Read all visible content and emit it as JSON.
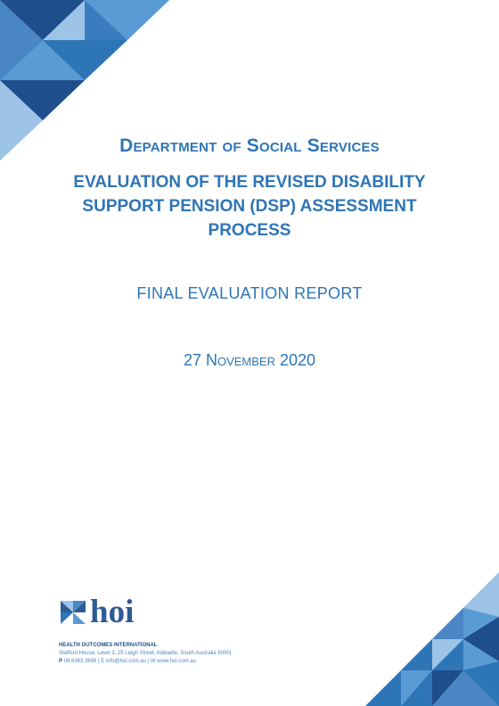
{
  "cover": {
    "department": "Department of Social Services",
    "title": "EVALUATION OF THE REVISED DISABILITY SUPPORT PENSION (DSP) ASSESSMENT PROCESS",
    "report_type": "FINAL EVALUATION REPORT",
    "date": "27 November 2020"
  },
  "logo": {
    "text": "hoi",
    "icon": "pinwheel-logo-icon"
  },
  "footer": {
    "org": "HEALTH OUTCOMES INTERNATIONAL",
    "address": "Stafford House, Level 3, 25 Leigh Street, Adelaide, South Australia 5000|",
    "phone_label": "P",
    "phone": "08 8363 3699",
    "email": "| E info@hoi.com.au",
    "web": "| W www.hoi.com.au"
  },
  "colors": {
    "primary": "#2E75B6",
    "dark": "#1F4E8C",
    "mid": "#5B9BD5",
    "light": "#9DC3E6"
  }
}
